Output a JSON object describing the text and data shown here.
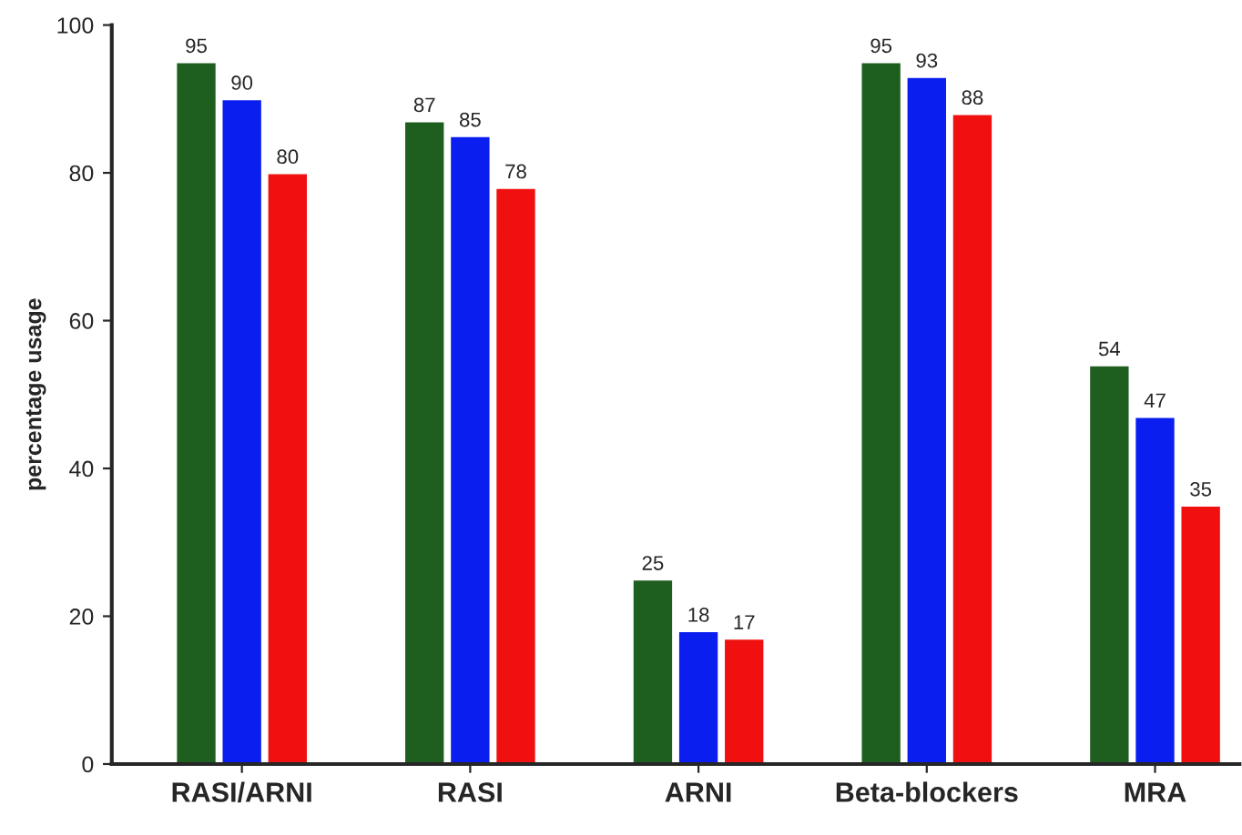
{
  "chart_data": {
    "type": "bar",
    "ylabel": "percentage usage",
    "categories": [
      "RASI/ARNI",
      "RASI",
      "ARNI",
      "Beta-blockers",
      "MRA"
    ],
    "series": [
      {
        "color": "#1e5e1e",
        "values": [
          95,
          87,
          25,
          95,
          54
        ]
      },
      {
        "color": "#0a1ef0",
        "values": [
          90,
          85,
          18,
          93,
          47
        ]
      },
      {
        "color": "#f01010",
        "values": [
          80,
          78,
          17,
          88,
          35
        ]
      }
    ],
    "ylim": [
      0,
      100
    ],
    "yticks": [
      0,
      20,
      40,
      60,
      80,
      100
    ],
    "grid": false,
    "data_labels": true
  }
}
